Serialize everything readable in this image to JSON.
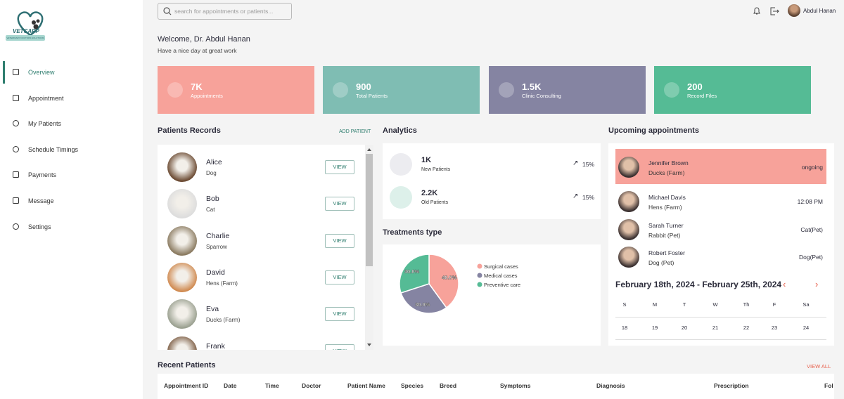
{
  "brand": {
    "name": "VETCAPP",
    "tagline": "VETERINARY DOCTORS SOLUTIONS"
  },
  "nav": [
    "Overview",
    "Appointment",
    "My Patients",
    "Schedule Timings",
    "Payments",
    "Message",
    "Settings"
  ],
  "search_placeholder": "search for appointments or patients...",
  "user": "Abdul Hanan",
  "welcome": {
    "title": "Welcome, Dr. Abdul Hanan",
    "subtitle": "Have a nice day at great work"
  },
  "stats": [
    {
      "value": "7K",
      "label": "Appointments",
      "color": "#f7a29a"
    },
    {
      "value": "900",
      "label": "Total Patients",
      "color": "#7fbdb3"
    },
    {
      "value": "1.5K",
      "label": "Clinic Consulting",
      "color": "#8584a2"
    },
    {
      "value": "200",
      "label": "Record Files",
      "color": "#55bb95"
    }
  ],
  "patients_records": {
    "title": "Patients Records",
    "action": "ADD PATIENT",
    "button": "VIEW",
    "rows": [
      {
        "name": "Alice",
        "species": "Dog"
      },
      {
        "name": "Bob",
        "species": "Cat"
      },
      {
        "name": "Charlie",
        "species": "Sparrow"
      },
      {
        "name": "David",
        "species": "Hens (Farm)"
      },
      {
        "name": "Eva",
        "species": "Ducks (Farm)"
      },
      {
        "name": "Frank"
      }
    ]
  },
  "analytics": {
    "title": "Analytics",
    "rows": [
      {
        "value": "1K",
        "label": "New Patients",
        "change": "15%"
      },
      {
        "value": "2.2K",
        "label": "Old Patients",
        "change": "15%"
      }
    ]
  },
  "treatments": {
    "type": "pie",
    "title": "Treatments type",
    "categories": [
      "Surgical cases",
      "Medical cases",
      "Preventive care"
    ],
    "values": [
      40,
      30,
      30
    ],
    "value_labels": [
      "40.0%",
      "30.0%",
      "30.0%"
    ],
    "colors": [
      "#f7a29a",
      "#8584a2",
      "#55bb95"
    ]
  },
  "upcoming": {
    "title": "Upcoming appointments",
    "rows": [
      {
        "name": "Jennifer Brown",
        "detail": "Ducks (Farm)",
        "status": "ongoing"
      },
      {
        "name": "Michael Davis",
        "detail": "Hens (Farm)",
        "status": "12:08 PM"
      },
      {
        "name": "Sarah Turner",
        "detail": "Rabbit (Pet)",
        "status": "Cat(Pet)"
      },
      {
        "name": "Robert Foster",
        "detail": "Dog (Pet)",
        "status": "Dog(Pet)"
      }
    ]
  },
  "calendar": {
    "title": "February 18th, 2024 - February 25th, 2024",
    "weekdays": [
      "S",
      "M",
      "T",
      "W",
      "Th",
      "F",
      "Sa"
    ],
    "dates": [
      "18",
      "19",
      "20",
      "21",
      "22",
      "23",
      "24"
    ]
  },
  "recent": {
    "title": "Recent Patients",
    "action": "VIEW ALL",
    "columns": [
      "Appointment ID",
      "Date",
      "Time",
      "Doctor",
      "Patient Name",
      "Species",
      "Breed",
      "Symptoms",
      "Diagnosis",
      "Prescription",
      "Fol"
    ]
  }
}
